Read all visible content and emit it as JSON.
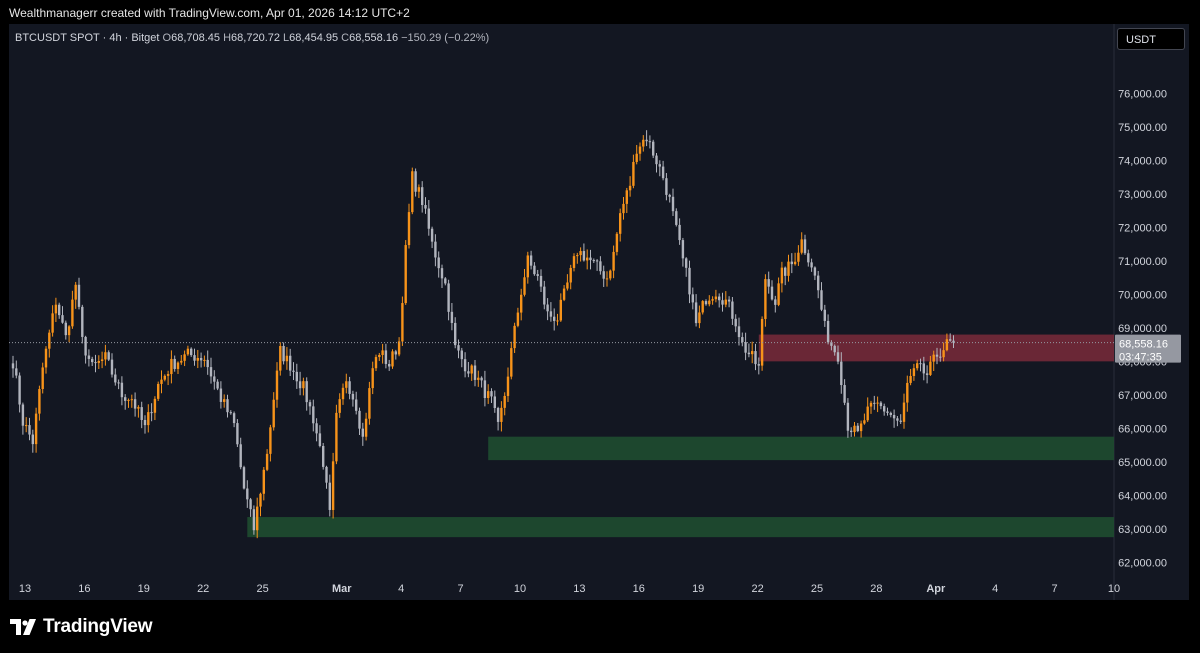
{
  "header": {
    "attribution": "Wealthmanagerr created with TradingView.com, Apr 01, 2026 14:12 UTC+2"
  },
  "legend": {
    "symbol": "BTCUSDT SPOT · 4h · Bitget",
    "open_label": "O",
    "open": "68,708.45",
    "high_label": "H",
    "high": "68,720.72",
    "low_label": "L",
    "low": "68,454.95",
    "close_label": "C",
    "close": "68,558.16",
    "change": "−150.29 (−0.22%)"
  },
  "currency": "USDT",
  "price_tag": {
    "price": "68,558.16",
    "countdown": "03:47:35"
  },
  "branding": {
    "name": "TradingView"
  },
  "colors": {
    "background": "#131722",
    "up_candle": "#f7931a",
    "down_candle": "#b2b5be",
    "resistance_zone": "#7a2a3a",
    "support_zone": "#1f4d30",
    "price_tag": "#9598a1"
  },
  "chart_data": {
    "type": "candlestick",
    "title": "BTCUSDT SPOT · 4h · Bitget",
    "ylim": [
      61500,
      77000
    ],
    "y_ticks": [
      "62,000.00",
      "63,000.00",
      "64,000.00",
      "65,000.00",
      "66,000.00",
      "67,000.00",
      "68,000.00",
      "69,000.00",
      "70,000.00",
      "71,000.00",
      "72,000.00",
      "73,000.00",
      "74,000.00",
      "75,000.00",
      "76,000.00"
    ],
    "y_tick_values": [
      62000,
      63000,
      64000,
      65000,
      66000,
      67000,
      68000,
      69000,
      70000,
      71000,
      72000,
      73000,
      74000,
      75000,
      76000
    ],
    "x_ticks": [
      "13",
      "16",
      "19",
      "22",
      "25",
      "Mar",
      "4",
      "7",
      "10",
      "13",
      "16",
      "19",
      "22",
      "25",
      "28",
      "Apr",
      "4",
      "7",
      "10"
    ],
    "x_tick_bar_index": [
      0,
      18,
      36,
      54,
      72,
      96,
      114,
      132,
      150,
      168,
      186,
      204,
      222,
      240,
      258,
      276,
      294,
      312,
      330
    ],
    "last_price": 68558.16,
    "zones": [
      {
        "kind": "resistance",
        "low": 68000,
        "high": 68800,
        "start_index": 226,
        "end_index": 339
      },
      {
        "kind": "support",
        "low": 65050,
        "high": 65750,
        "start_index": 144,
        "end_index": 339
      },
      {
        "kind": "support",
        "low": 62750,
        "high": 63350,
        "start_index": 71,
        "end_index": 339
      }
    ],
    "anchors": [
      [
        0,
        68000
      ],
      [
        3,
        66200
      ],
      [
        6,
        65600
      ],
      [
        9,
        67800
      ],
      [
        13,
        69800
      ],
      [
        16,
        68700
      ],
      [
        19,
        70300
      ],
      [
        21,
        68600
      ],
      [
        24,
        67800
      ],
      [
        28,
        68100
      ],
      [
        33,
        67000
      ],
      [
        36,
        66900
      ],
      [
        40,
        66000
      ],
      [
        44,
        67300
      ],
      [
        48,
        67900
      ],
      [
        53,
        68200
      ],
      [
        58,
        68100
      ],
      [
        63,
        66900
      ],
      [
        67,
        66100
      ],
      [
        70,
        64200
      ],
      [
        73,
        63000
      ],
      [
        77,
        65300
      ],
      [
        79,
        66900
      ],
      [
        81,
        68300
      ],
      [
        84,
        67900
      ],
      [
        88,
        67200
      ],
      [
        91,
        66300
      ],
      [
        94,
        65000
      ],
      [
        96,
        63400
      ],
      [
        98,
        66300
      ],
      [
        101,
        67500
      ],
      [
        104,
        66700
      ],
      [
        106,
        65700
      ],
      [
        109,
        67800
      ],
      [
        111,
        68300
      ],
      [
        114,
        67900
      ],
      [
        117,
        68600
      ],
      [
        119,
        71300
      ],
      [
        121,
        73500
      ],
      [
        124,
        72800
      ],
      [
        127,
        71500
      ],
      [
        131,
        70300
      ],
      [
        134,
        68400
      ],
      [
        137,
        67900
      ],
      [
        140,
        67600
      ],
      [
        143,
        67100
      ],
      [
        145,
        66800
      ],
      [
        147,
        66000
      ],
      [
        149,
        67000
      ],
      [
        151,
        68300
      ],
      [
        154,
        70100
      ],
      [
        156,
        71000
      ],
      [
        159,
        70500
      ],
      [
        162,
        69400
      ],
      [
        165,
        69300
      ],
      [
        168,
        70300
      ],
      [
        171,
        71300
      ],
      [
        174,
        71100
      ],
      [
        177,
        70800
      ],
      [
        180,
        70500
      ],
      [
        182,
        71200
      ],
      [
        184,
        72400
      ],
      [
        187,
        73300
      ],
      [
        189,
        74400
      ],
      [
        192,
        74700
      ],
      [
        195,
        74000
      ],
      [
        197,
        73500
      ],
      [
        199,
        72800
      ],
      [
        201,
        71900
      ],
      [
        203,
        71000
      ],
      [
        205,
        70200
      ],
      [
        207,
        69100
      ],
      [
        210,
        69900
      ],
      [
        213,
        70100
      ],
      [
        216,
        69800
      ],
      [
        219,
        69200
      ],
      [
        221,
        68500
      ],
      [
        224,
        68100
      ],
      [
        226,
        67800
      ],
      [
        228,
        70500
      ],
      [
        231,
        69800
      ],
      [
        233,
        70600
      ],
      [
        236,
        70900
      ],
      [
        239,
        71600
      ],
      [
        242,
        70900
      ],
      [
        244,
        70100
      ],
      [
        246,
        69000
      ],
      [
        248,
        68500
      ],
      [
        250,
        68200
      ],
      [
        253,
        66100
      ],
      [
        256,
        65800
      ],
      [
        259,
        66500
      ],
      [
        262,
        66700
      ],
      [
        265,
        66500
      ],
      [
        267,
        66300
      ],
      [
        269,
        66100
      ],
      [
        271,
        67300
      ],
      [
        274,
        67800
      ],
      [
        277,
        67600
      ],
      [
        280,
        68200
      ],
      [
        283,
        68500
      ],
      [
        285,
        68558.16
      ]
    ]
  }
}
